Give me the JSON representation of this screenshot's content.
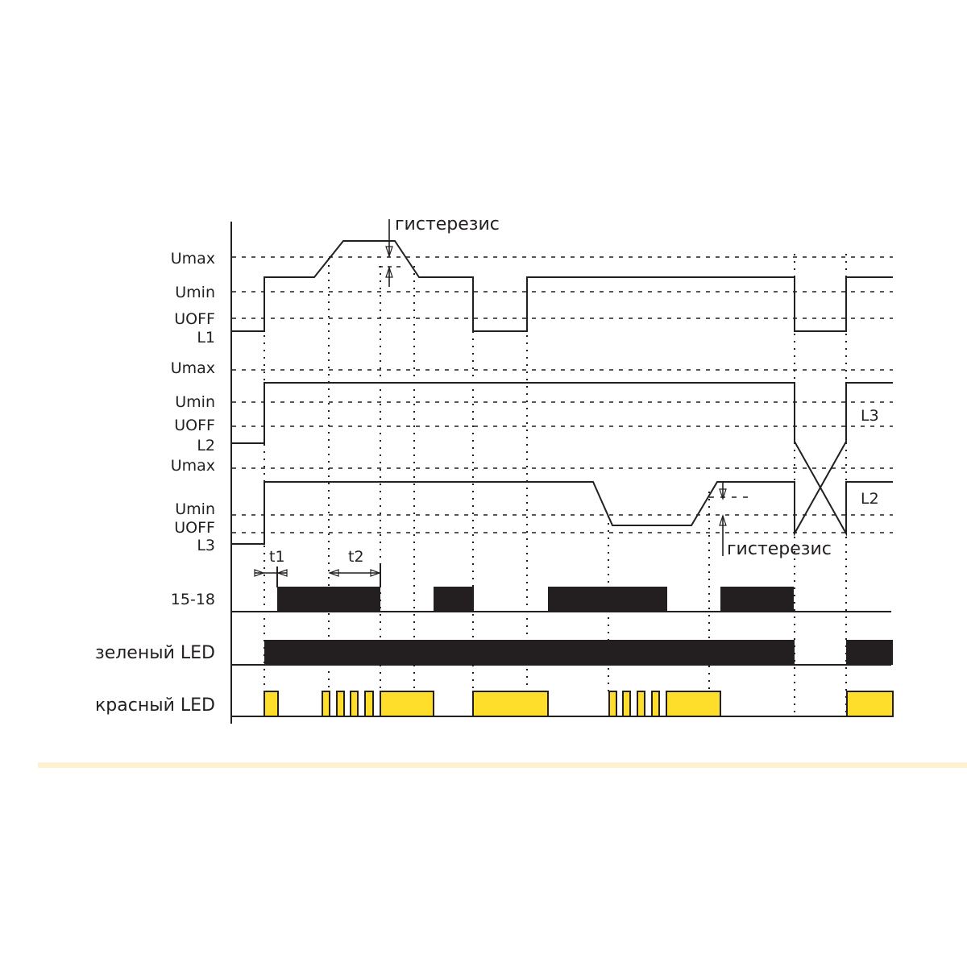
{
  "phases": [
    "L1",
    "L2",
    "L3"
  ],
  "levels": {
    "umax": "Umax",
    "umin": "Umin",
    "uoff": "UOFF"
  },
  "rows": {
    "relay": "15-18",
    "green_led": "зеленый LED",
    "red_led": "красный LED"
  },
  "annotations": {
    "hysteresis": "гистерезис",
    "t1": "t1",
    "t2": "t2",
    "crossed_l3": "L3",
    "crossed_l2": "L2"
  },
  "colors": {
    "line": "#231f20",
    "relay_fill": "#231f20",
    "red_led_fill": "#ffdd2b",
    "divider": "#fdf2d0"
  }
}
